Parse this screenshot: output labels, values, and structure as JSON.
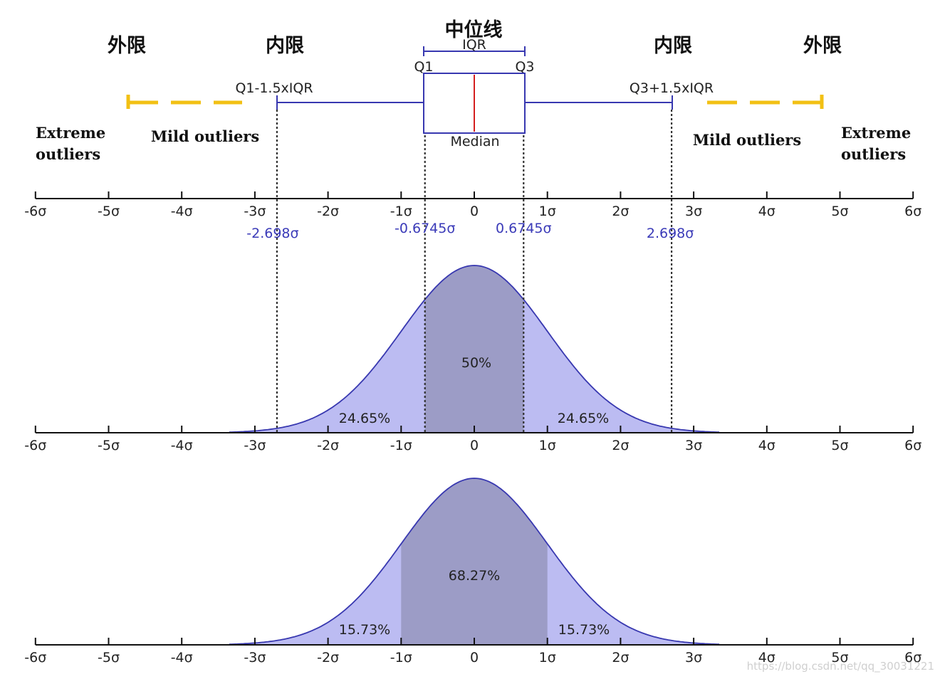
{
  "header": {
    "outer_fence_left": "外限",
    "inner_fence_left": "内限",
    "median_line": "中位线",
    "inner_fence_right": "内限",
    "outer_fence_right": "外限"
  },
  "boxplot": {
    "iqr": "IQR",
    "q1": "Q1",
    "q3": "Q3",
    "median": "Median",
    "lower_fence": "Q1-1.5xIQR",
    "upper_fence": "Q3+1.5xIQR"
  },
  "regions": {
    "extreme_left": [
      "Extreme",
      "outliers"
    ],
    "mild_left": "Mild outliers",
    "mild_right": "Mild outliers",
    "extreme_right": [
      "Extreme",
      "outliers"
    ]
  },
  "axis": {
    "ticks": [
      "-6σ",
      "-5σ",
      "-4σ",
      "-3σ",
      "-2σ",
      "-1σ",
      "0",
      "1σ",
      "2σ",
      "3σ",
      "4σ",
      "5σ",
      "6σ"
    ],
    "blue_labels": [
      {
        "text": "-2.698σ",
        "value": -2.698
      },
      {
        "text": "-0.6745σ",
        "value": -0.6745
      },
      {
        "text": "0.6745σ",
        "value": 0.6745
      },
      {
        "text": "2.698σ",
        "value": 2.698
      }
    ]
  },
  "curve1": {
    "center": "50%",
    "left": "24.65%",
    "right": "24.65%",
    "dark_range": [
      -0.6745,
      0.6745
    ],
    "light_range": [
      -2.698,
      2.698
    ]
  },
  "curve2": {
    "center": "68.27%",
    "left": "15.73%",
    "right": "15.73%",
    "dark_range": [
      -1,
      1
    ]
  },
  "colors": {
    "curve_line": "#3838b0",
    "fill_light": "#bcbcf2",
    "fill_dark": "#9c9cc6",
    "fence_dash": "#f2c014",
    "median_red": "#d41f1f"
  },
  "watermark": "https://blog.csdn.net/qq_30031221"
}
